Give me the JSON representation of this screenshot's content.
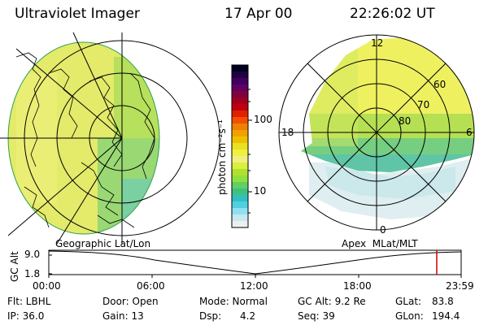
{
  "header": {
    "title": "Ultraviolet Imager",
    "date": "17 Apr 00",
    "time": "22:26:02 UT"
  },
  "colorbar": {
    "unit_label": "photon cm⁻²s⁻¹",
    "ticks": [
      "100",
      "10"
    ],
    "colors_top_to_bottom": [
      "#000020",
      "#200040",
      "#400060",
      "#600060",
      "#800040",
      "#a00020",
      "#c00010",
      "#e02000",
      "#f05000",
      "#f08000",
      "#f0a000",
      "#f0c000",
      "#e8e020",
      "#f0f040",
      "#f0f080",
      "#d8f040",
      "#b0e030",
      "#90e040",
      "#60d060",
      "#40c080",
      "#30c0c0",
      "#50d0e0",
      "#90e0f0",
      "#c8e8f0",
      "#e8f0f0"
    ]
  },
  "left_map": {
    "caption": "Geographic Lat/Lon",
    "dominant_color": "#e4ea6a",
    "edge_color": "#5cc87a"
  },
  "right_polar": {
    "caption": "Apex  MLat/MLT",
    "mlt_labels": {
      "top": "12",
      "left": "18",
      "right": "6",
      "bottom": "0"
    },
    "lat_labels": [
      "60",
      "70",
      "80"
    ],
    "fill_color": "#eef060",
    "edge_color": "#60c890"
  },
  "altitude_plot": {
    "ylabel": "GC Alt",
    "ticks": [
      "9.0",
      "1.8"
    ],
    "x_labels": [
      "00:00",
      "06:00",
      "12:00",
      "18:00",
      "23:59"
    ],
    "marker_color": "#d00000"
  },
  "info": {
    "row1": [
      "Flt: LBHL",
      "Door: Open",
      "Mode: Normal",
      "GC Alt: 9.2 Re",
      "GLat:",
      "83.8"
    ],
    "row2": [
      "IP: 36.0",
      "Gain: 13",
      "Dsp:      4.2",
      "Seq: 39",
      "GLon:",
      "194.4"
    ]
  }
}
